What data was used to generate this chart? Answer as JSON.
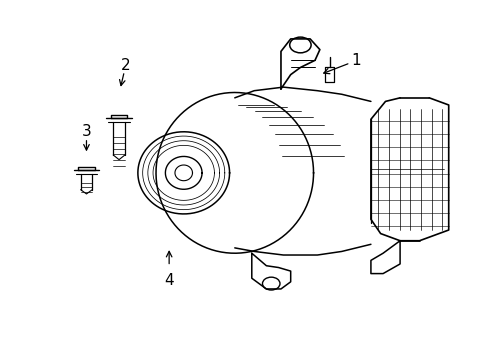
{
  "background_color": "#ffffff",
  "line_color": "#000000",
  "label_color": "#000000",
  "label_1": [
    0.73,
    0.835
  ],
  "label_2": [
    0.255,
    0.82
  ],
  "label_3": [
    0.175,
    0.635
  ],
  "label_4": [
    0.345,
    0.22
  ]
}
